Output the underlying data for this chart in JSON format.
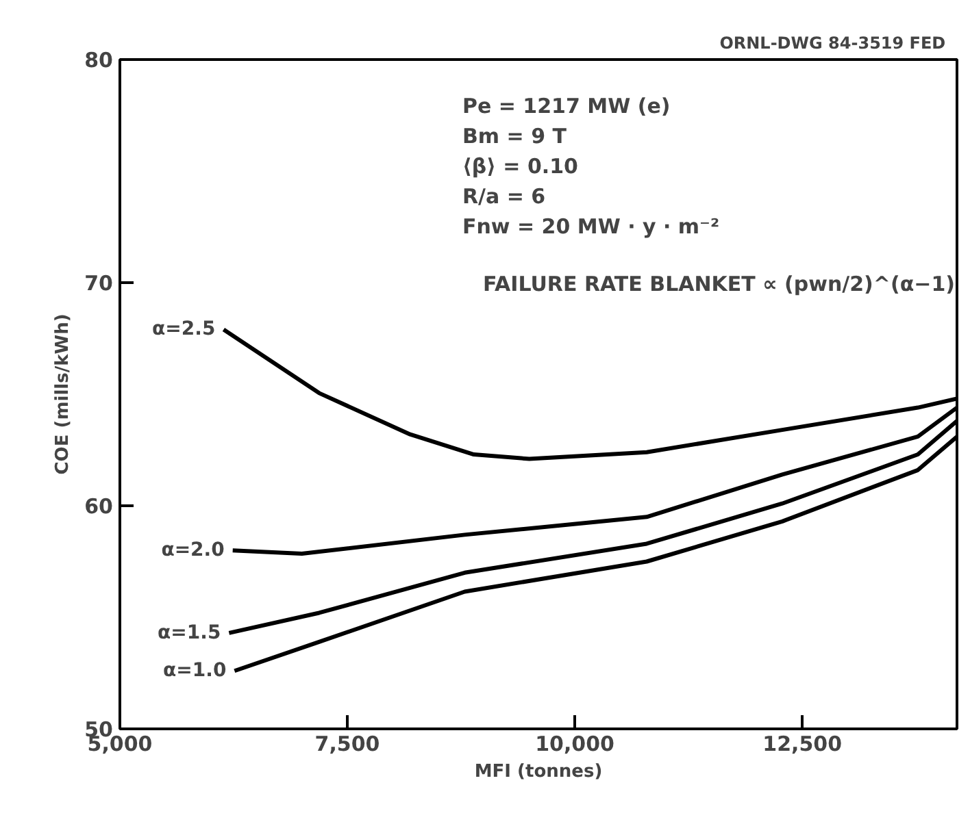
{
  "chart_data": {
    "type": "line",
    "title": "ORNL-DWG 84-3519   FED",
    "xlabel": "MFI (tonnes)",
    "ylabel": "COE (mills/kWh)",
    "xlim": [
      5000,
      14200
    ],
    "ylim": [
      50,
      80
    ],
    "xticks": [
      {
        "value": 5000,
        "label": "5,000"
      },
      {
        "value": 7500,
        "label": "7,500"
      },
      {
        "value": 10000,
        "label": "10,000"
      },
      {
        "value": 12500,
        "label": "12,500"
      }
    ],
    "yticks": [
      50,
      60,
      70,
      80
    ],
    "grid": false,
    "legend": false,
    "marker": "none",
    "line_style": "solid",
    "annotations": [
      "Pe = 1217 MW (e)",
      "Bm = 9 T",
      "⟨β⟩ = 0.10",
      "R/a = 6",
      "Fnw = 20 MW · y · m⁻²",
      "FAILURE RATE BLANKET ∝ (pwn/2)^(α−1)"
    ],
    "series": [
      {
        "name": "α=2.5",
        "color": "#000000",
        "x": [
          6140,
          7190,
          8190,
          8890,
          9500,
          10790,
          12280,
          13770,
          14200
        ],
        "values": [
          67.9,
          65.05,
          63.2,
          62.3,
          62.1,
          62.4,
          63.4,
          64.4,
          64.8
        ]
      },
      {
        "name": "α=2.0",
        "color": "#000000",
        "x": [
          6240,
          7000,
          8790,
          10790,
          12280,
          13770,
          14200
        ],
        "values": [
          58.0,
          57.85,
          58.7,
          59.5,
          61.4,
          63.1,
          64.4
        ]
      },
      {
        "name": "α=1.5",
        "color": "#000000",
        "x": [
          6200,
          7190,
          8790,
          10790,
          12280,
          13770,
          14200
        ],
        "values": [
          54.3,
          55.2,
          57.0,
          58.3,
          60.1,
          62.3,
          63.8
        ]
      },
      {
        "name": "α=1.0",
        "color": "#000000",
        "x": [
          6260,
          7190,
          8790,
          10790,
          12280,
          13770,
          14200
        ],
        "values": [
          52.6,
          53.9,
          56.15,
          57.5,
          59.3,
          61.6,
          63.1
        ]
      }
    ]
  }
}
